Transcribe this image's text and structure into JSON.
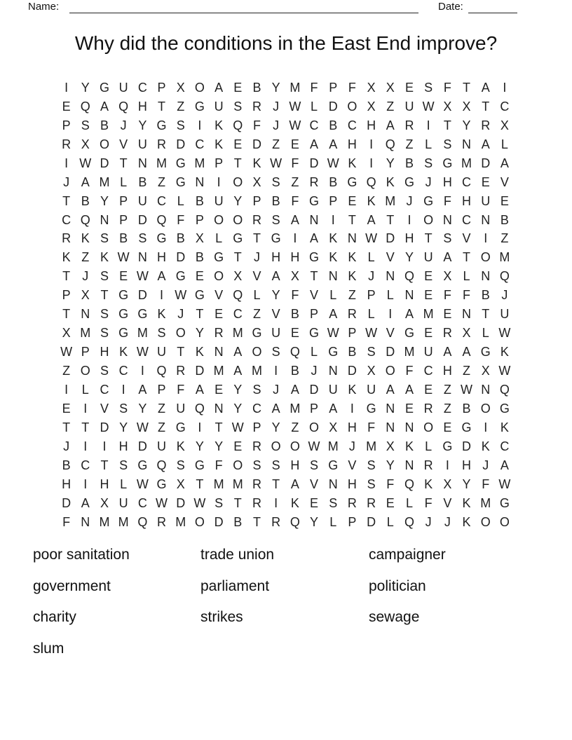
{
  "header": {
    "name_label": "Name:",
    "date_label": "Date:"
  },
  "title": "Why did the conditions in the East End improve?",
  "puzzle": {
    "columns": 24,
    "rows": [
      "IYGUCPXOAEBYMFPFXXESFTAI",
      "EQAQHTZGUSRJWLDOXZUWXXTC",
      "PSBJYGSIKQFJWCBCHARITYRX",
      "RXOVURDCKEDZEAAHIQZLSNAL",
      "IWDTNMGMPTKWFDWKIYBSGMDA",
      "JAMLBZGNIOXSZRBGQKGJHCEV",
      "TBYPUCLBUYPBFGPEKMJGFHUE",
      "CQNPDQFPOORSANITATIONCNB",
      "RKSBSGBXLGTGIAKNWDHTSVIZ",
      "KZKWNHDBGTJHHGKKLVYUATOM",
      "TJSEWAGEOXVAXTNKJNQEXLNQ",
      "PXTGDIWGVQLYFVLZPLNEFFBJ",
      "TNSGGKJTECZVBPARLIAMENTU",
      "XMSGMSOYRMGUEGWPWVGERXLW",
      "WPHKWUTKNAOSQLGBSDMUAAGK",
      "ZOSCIQRDMAMIBJNDXOFCHZXW",
      "ILCIAPFAEYSJADUKUAAEZWNQ",
      "EIVSYZUQNYCAMPAIGNERZBOG",
      "TTDYWZGITWPYZOXHFNNOEGIK",
      "JIIHDUKYYEROOWMJMXKLGDKC",
      "BCTSGQSGFOSSHSGVSYNRIHJA",
      "HIHLWGXTMMRTAVNHSFQKXYFW",
      "DAXUCWDWSTRIKESRRELFVKMG",
      "FNMMQRMODBTRQYLPDLQJJKOO"
    ]
  },
  "word_bank": {
    "columns": 3,
    "words": [
      "poor sanitation",
      "trade union",
      "campaigner",
      "government",
      "parliament",
      "politician",
      "charity",
      "strikes",
      "sewage",
      "slum"
    ]
  },
  "colors": {
    "text": "#1c1c1c",
    "background": "#ffffff"
  }
}
